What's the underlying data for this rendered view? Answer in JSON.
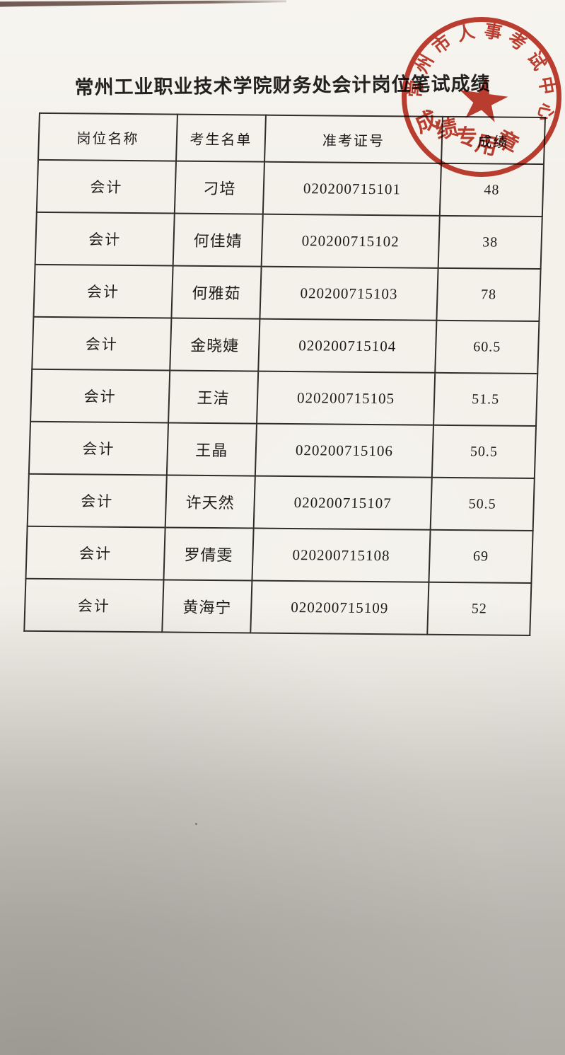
{
  "page": {
    "title": "常州工业职业技术学院财务处会计岗位笔试成绩"
  },
  "table": {
    "headers": [
      "岗位名称",
      "考生名单",
      "准考证号",
      "成绩"
    ],
    "rows": [
      {
        "position": "会计",
        "name": "刁培",
        "ticket": "020200715101",
        "score": "48"
      },
      {
        "position": "会计",
        "name": "何佳婧",
        "ticket": "020200715102",
        "score": "38"
      },
      {
        "position": "会计",
        "name": "何雅茹",
        "ticket": "020200715103",
        "score": "78"
      },
      {
        "position": "会计",
        "name": "金晓婕",
        "ticket": "020200715104",
        "score": "60.5"
      },
      {
        "position": "会计",
        "name": "王洁",
        "ticket": "020200715105",
        "score": "51.5"
      },
      {
        "position": "会计",
        "name": "王晶",
        "ticket": "020200715106",
        "score": "50.5"
      },
      {
        "position": "会计",
        "name": "许天然",
        "ticket": "020200715107",
        "score": "50.5"
      },
      {
        "position": "会计",
        "name": "罗倩雯",
        "ticket": "020200715108",
        "score": "69"
      },
      {
        "position": "会计",
        "name": "黄海宁",
        "ticket": "020200715109",
        "score": "52"
      }
    ]
  },
  "stamp": {
    "arc_text": "常州市人事考试中心",
    "bottom_text": "成绩专用章",
    "star_icon": "five-pointed-star",
    "color": "#bd3122"
  }
}
